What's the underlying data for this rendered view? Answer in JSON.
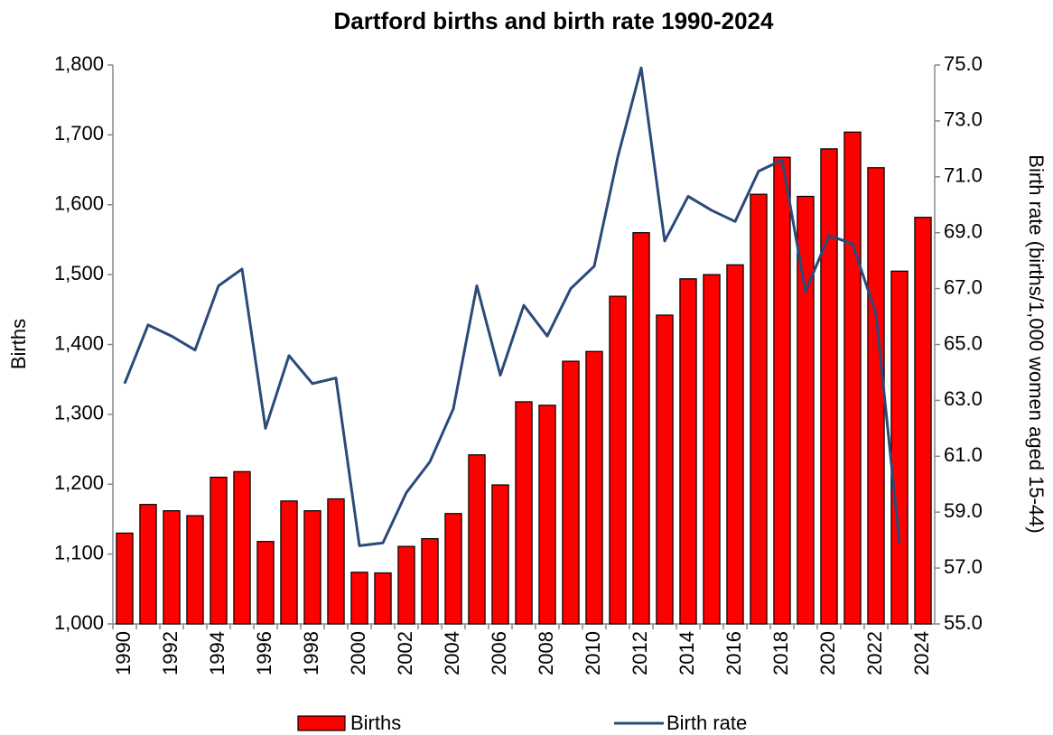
{
  "chart_data": {
    "type": "bar_line",
    "title": "Dartford births and birth rate 1990-2024",
    "y_label": "Births",
    "y2_label": "Birth rate (births/1,000 women aged 15-44)",
    "categories": [
      "1990",
      null,
      "1992",
      null,
      "1994",
      null,
      "1996",
      null,
      "1998",
      null,
      "2000",
      null,
      "2002",
      null,
      "2004",
      null,
      "2006",
      null,
      "2008",
      null,
      "2010",
      null,
      "2012",
      null,
      "2014",
      null,
      "2016",
      null,
      "2018",
      null,
      "2020",
      null,
      "2022",
      null,
      "2024"
    ],
    "series": [
      {
        "name": "Births",
        "type": "bar",
        "color": "#ff0000",
        "values": [
          1130,
          1171,
          1162,
          1155,
          1210,
          1218,
          1118,
          1176,
          1162,
          1179,
          1074,
          1073,
          1111,
          1122,
          1158,
          1242,
          1199,
          1318,
          1313,
          1376,
          1390,
          1469,
          1560,
          1442,
          1494,
          1500,
          1514,
          1615,
          1668,
          1612,
          1680,
          1704,
          1653,
          1505,
          1582
        ]
      },
      {
        "name": "Birth rate",
        "type": "line",
        "axis": "y2",
        "color": "#2b4a7a",
        "values": [
          63.6,
          65.7,
          65.3,
          64.8,
          67.1,
          67.7,
          62.0,
          64.6,
          63.6,
          63.8,
          57.8,
          57.9,
          59.7,
          60.8,
          62.7,
          67.1,
          63.9,
          66.4,
          65.3,
          67.0,
          67.8,
          71.7,
          74.9,
          68.7,
          70.3,
          69.8,
          69.4,
          71.2,
          71.6,
          66.9,
          68.9,
          68.6,
          66.1,
          57.9,
          null
        ]
      }
    ],
    "ylim": [
      1000,
      1800
    ],
    "yticks": [
      {
        "value": 1000,
        "label": "1,000"
      },
      {
        "value": 1100,
        "label": "1,100"
      },
      {
        "value": 1200,
        "label": "1,200"
      },
      {
        "value": 1300,
        "label": "1,300"
      },
      {
        "value": 1400,
        "label": "1,400"
      },
      {
        "value": 1500,
        "label": "1,500"
      },
      {
        "value": 1600,
        "label": "1,600"
      },
      {
        "value": 1700,
        "label": "1,700"
      },
      {
        "value": 1800,
        "label": "1,800"
      }
    ],
    "y2lim": [
      55,
      75
    ],
    "y2ticks": [
      {
        "value": 55,
        "label": "55.0"
      },
      {
        "value": 57,
        "label": "57.0"
      },
      {
        "value": 59,
        "label": "59.0"
      },
      {
        "value": 61,
        "label": "61.0"
      },
      {
        "value": 63,
        "label": "63.0"
      },
      {
        "value": 65,
        "label": "65.0"
      },
      {
        "value": 67,
        "label": "67.0"
      },
      {
        "value": 69,
        "label": "69.0"
      },
      {
        "value": 71,
        "label": "71.0"
      },
      {
        "value": 73,
        "label": "73.0"
      },
      {
        "value": 75,
        "label": "75.0"
      }
    ],
    "grid": false,
    "legend": "bottom"
  }
}
